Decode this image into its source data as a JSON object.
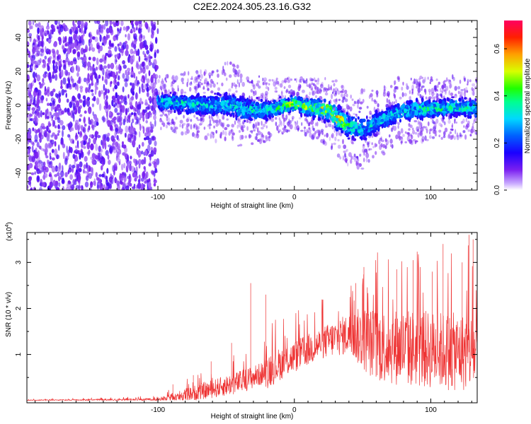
{
  "title": "C2E2.2024.305.23.16.G32",
  "colors": {
    "snr_line": "#ee3333",
    "frame": "#000000"
  },
  "chart_data": [
    {
      "type": "heatmap",
      "xlabel": "Height of straight line (km)",
      "ylabel": "Frequency (Hz)",
      "xlim": [
        -196,
        134
      ],
      "ylim": [
        -50,
        50
      ],
      "x_ticks": [
        -100,
        0,
        100
      ],
      "x_tick_labels": [
        "-100",
        "0",
        "100"
      ],
      "y_ticks": [
        -40,
        -20,
        0,
        20,
        40
      ],
      "y_tick_labels": [
        "-40",
        "-20",
        "0",
        "20",
        "40"
      ],
      "grid": false,
      "colorbar": {
        "label": "Normalized spectral amplitude",
        "range": [
          0,
          0.72
        ],
        "ticks": [
          0,
          0.2,
          0.4,
          0.6
        ],
        "tick_labels": [
          "0.0",
          "0.2",
          "0.4",
          "0.6"
        ]
      },
      "noise_region": {
        "x_range": [
          -196,
          -100
        ],
        "amplitude": 0.06
      },
      "signal_band": {
        "x": [
          -100,
          -80,
          -60,
          -45,
          -40,
          -20,
          0,
          15,
          25,
          32,
          40,
          50,
          60,
          80,
          100,
          120,
          134
        ],
        "center_hz": [
          2,
          1,
          0,
          1,
          -2,
          -3,
          1,
          -2,
          -3,
          -8,
          -12,
          -14,
          -10,
          -3,
          -2,
          -1,
          -2
        ],
        "half_width_hz": [
          6,
          7,
          8,
          10,
          9,
          7,
          6,
          7,
          8,
          9,
          9,
          9,
          8,
          8,
          7,
          7,
          7
        ],
        "peak_amplitude": [
          0.3,
          0.3,
          0.25,
          0.28,
          0.3,
          0.3,
          0.5,
          0.45,
          0.55,
          0.62,
          0.35,
          0.28,
          0.28,
          0.3,
          0.35,
          0.32,
          0.3
        ]
      }
    },
    {
      "type": "line",
      "xlabel": "Height of straight line (km)",
      "ylabel": "SNR (10 * v/v)",
      "y_multiplier": "(x10",
      "y_multiplier_exp": "4",
      "y_multiplier_close": ")",
      "xlim": [
        -196,
        134
      ],
      "ylim": [
        -0.05,
        3.65
      ],
      "x_ticks": [
        -100,
        0,
        100
      ],
      "x_tick_labels": [
        "-100",
        "0",
        "100"
      ],
      "y_ticks": [
        1,
        2,
        3
      ],
      "y_tick_labels": [
        "1",
        "2",
        "3"
      ],
      "grid": false,
      "series": [
        {
          "envelope_x": [
            -196,
            -100,
            -90,
            -80,
            -60,
            -40,
            -22,
            -20,
            -10,
            0,
            20,
            40,
            50,
            60,
            80,
            100,
            120,
            134
          ],
          "baseline_y": [
            0.0,
            0.02,
            0.06,
            0.12,
            0.25,
            0.4,
            0.6,
            0.65,
            0.8,
            0.95,
            1.25,
            1.45,
            1.35,
            1.2,
            1.15,
            1.1,
            1.05,
            1.05
          ],
          "spread_y": [
            0.01,
            0.03,
            0.08,
            0.15,
            0.2,
            0.25,
            0.25,
            0.4,
            0.35,
            0.35,
            0.35,
            0.45,
            0.7,
            0.8,
            0.85,
            0.85,
            0.85,
            0.85
          ],
          "spikes": [
            {
              "x": -89,
              "y": 0.35
            },
            {
              "x": -74,
              "y": 0.55
            },
            {
              "x": -61,
              "y": 0.85
            },
            {
              "x": -46,
              "y": 1.25
            },
            {
              "x": -32,
              "y": 2.55
            },
            {
              "x": -21,
              "y": 2.3
            },
            {
              "x": 45,
              "y": 2.55
            },
            {
              "x": 51,
              "y": 2.9
            },
            {
              "x": 69,
              "y": 2.4
            },
            {
              "x": 75,
              "y": 2.85
            },
            {
              "x": 87,
              "y": 3.05
            },
            {
              "x": 101,
              "y": 2.8
            },
            {
              "x": 109,
              "y": 3.4
            },
            {
              "x": 123,
              "y": 3.0
            },
            {
              "x": 128,
              "y": 3.6
            },
            {
              "x": 131,
              "y": 3.5
            }
          ]
        }
      ]
    }
  ]
}
